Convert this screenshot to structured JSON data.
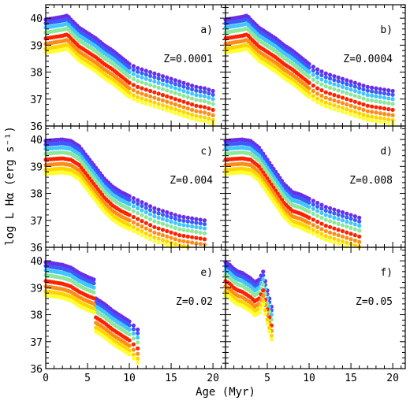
{
  "chart_data": {
    "type": "scatter",
    "xlabel": "Age (Myr)",
    "ylabel": "log L Hα (erg s⁻¹)",
    "xlim": [
      0,
      21.5
    ],
    "ylim": [
      36,
      40.5
    ],
    "xticks": [
      0,
      5,
      10,
      15,
      20
    ],
    "yticks": [
      36,
      37,
      38,
      39,
      40
    ],
    "grid": false,
    "legend": "none",
    "colors": [
      "#6a2ee8",
      "#3a5cff",
      "#40c7ff",
      "#8ce89a",
      "#ff2200",
      "#ff8c1a",
      "#ffd400",
      "#ffff33"
    ],
    "panels": [
      {
        "letter": "a)",
        "label": "Z=0.0001",
        "series_offsets": [
          0.0,
          -0.14,
          -0.3,
          -0.48,
          -0.7,
          -0.9,
          -1.08,
          -1.22
        ],
        "top_curve": {
          "x": [
            0,
            1,
            2,
            2.6,
            3,
            4,
            5,
            6,
            7,
            8,
            9,
            10,
            11,
            12,
            13,
            14,
            15,
            16,
            17,
            18,
            19,
            20
          ],
          "y": [
            39.95,
            40.0,
            40.05,
            40.1,
            39.95,
            39.65,
            39.45,
            39.25,
            39.0,
            38.8,
            38.55,
            38.3,
            38.15,
            38.05,
            37.95,
            37.85,
            37.75,
            37.65,
            37.55,
            37.45,
            37.4,
            37.3
          ]
        }
      },
      {
        "letter": "b)",
        "label": "Z=0.0004",
        "series_offsets": [
          0.0,
          -0.14,
          -0.3,
          -0.48,
          -0.7,
          -0.9,
          -1.08,
          -1.22
        ],
        "top_curve": {
          "x": [
            0,
            1,
            2,
            2.6,
            3,
            4,
            5,
            6,
            7,
            8,
            9,
            10,
            11,
            12,
            13,
            14,
            15,
            16,
            17,
            18,
            19,
            20
          ],
          "y": [
            39.95,
            40.0,
            40.05,
            40.1,
            39.95,
            39.65,
            39.45,
            39.25,
            39.0,
            38.8,
            38.55,
            38.3,
            38.1,
            37.95,
            37.85,
            37.75,
            37.65,
            37.55,
            37.45,
            37.4,
            37.35,
            37.3
          ]
        }
      },
      {
        "letter": "c)",
        "label": "Z=0.004",
        "series_offsets": [
          0.0,
          -0.14,
          -0.3,
          -0.48,
          -0.7,
          -0.9,
          -1.08,
          -1.22
        ],
        "top_curve": {
          "x": [
            0,
            1,
            2,
            3,
            4,
            5,
            6,
            7,
            8,
            9,
            10,
            11,
            12,
            13,
            14,
            15,
            16,
            17,
            18,
            19
          ],
          "y": [
            39.95,
            39.98,
            40.0,
            39.95,
            39.75,
            39.35,
            38.95,
            38.55,
            38.25,
            38.05,
            37.9,
            37.75,
            37.6,
            37.45,
            37.35,
            37.25,
            37.15,
            37.1,
            37.05,
            37.0
          ]
        }
      },
      {
        "letter": "d)",
        "label": "Z=0.008",
        "series_offsets": [
          0.0,
          -0.14,
          -0.3,
          -0.48,
          -0.7,
          -0.9,
          -1.08,
          -1.22
        ],
        "top_curve": {
          "x": [
            0,
            1,
            2,
            3,
            4,
            5,
            6,
            7,
            8,
            9,
            10,
            11,
            12,
            13,
            14,
            15,
            16
          ],
          "y": [
            39.95,
            39.98,
            40.0,
            39.95,
            39.7,
            39.25,
            38.8,
            38.35,
            38.05,
            37.95,
            37.8,
            37.65,
            37.5,
            37.4,
            37.3,
            37.2,
            37.1
          ]
        }
      },
      {
        "letter": "e)",
        "label": "Z=0.02",
        "series_offsets": [
          0.0,
          -0.14,
          -0.3,
          -0.48,
          -0.7,
          -0.9,
          -1.08,
          -1.22
        ],
        "top_curve": {
          "x": [
            0,
            1,
            2,
            3,
            4,
            5,
            5.8,
            6,
            7,
            8,
            9,
            10,
            11
          ],
          "y": [
            39.95,
            39.9,
            39.85,
            39.75,
            39.55,
            39.4,
            39.3,
            38.6,
            38.4,
            38.15,
            37.95,
            37.75,
            37.45
          ]
        }
      },
      {
        "letter": "f)",
        "label": "Z=0.05",
        "series_offsets": [
          0.0,
          -0.14,
          -0.3,
          -0.48,
          -0.7,
          -0.9,
          -1.08,
          -1.22
        ],
        "top_curve": {
          "x": [
            0,
            0.5,
            1,
            1.5,
            2,
            2.5,
            3,
            3.5,
            4,
            4.5,
            5,
            5.5
          ],
          "y": [
            39.95,
            39.85,
            39.7,
            39.6,
            39.55,
            39.45,
            39.35,
            39.2,
            39.3,
            39.6,
            38.9,
            38.3
          ]
        }
      }
    ]
  }
}
